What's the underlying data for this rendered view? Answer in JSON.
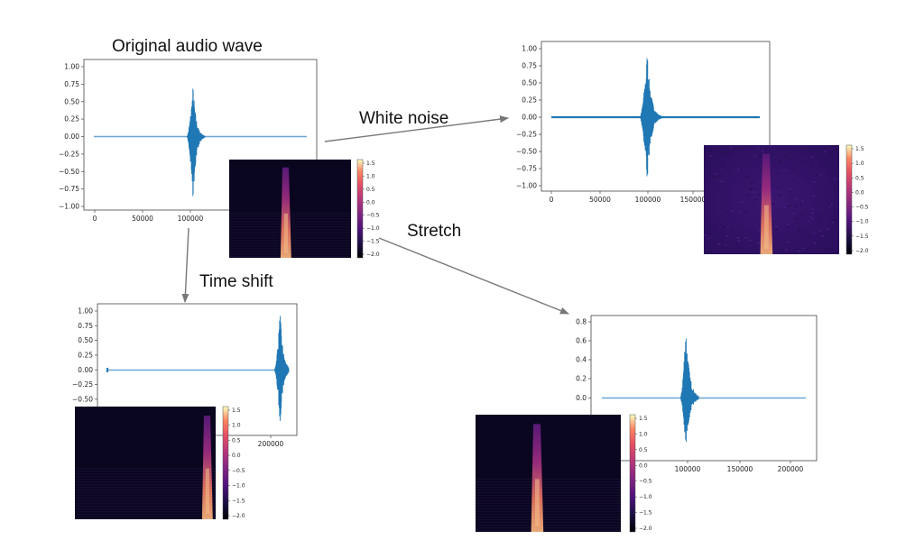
{
  "labels": {
    "original": "Original audio wave",
    "white_noise": "White noise",
    "stretch": "Stretch",
    "time_shift": "Time shift"
  },
  "colors": {
    "wave": "#1f77b4",
    "wave_light": "#6aa6d6",
    "axes": "#444444",
    "arrow": "#777777",
    "spec_background": "#0b0620"
  },
  "colorbar_ticks": [
    "1.5",
    "1.0",
    "0.5",
    "0.0",
    "−0.5",
    "−1.0",
    "−1.5",
    "−2.0"
  ],
  "panels": {
    "original": {
      "yticks": [
        "1.00",
        "0.75",
        "0.50",
        "0.25",
        "0.00",
        "−0.25",
        "−0.50",
        "−0.75",
        "−1.00"
      ],
      "xticks": [
        "0",
        "50000",
        "100000"
      ]
    },
    "white_noise": {
      "yticks": [
        "1.00",
        "0.75",
        "0.50",
        "0.25",
        "0.00",
        "−0.25",
        "−0.50",
        "−0.75",
        "−1.00"
      ],
      "xticks": [
        "0",
        "50000",
        "100000",
        "150000"
      ]
    },
    "time_shift": {
      "yticks": [
        "1.00",
        "0.75",
        "0.50",
        "0.25",
        "0.00",
        "−0.25",
        "−0.50"
      ],
      "xticks": [
        "200000"
      ]
    },
    "stretch": {
      "yticks": [
        "0.8",
        "0.6",
        "0.4",
        "0.2",
        "0.0"
      ],
      "xticks": [
        "100000",
        "150000",
        "200000"
      ]
    }
  }
}
